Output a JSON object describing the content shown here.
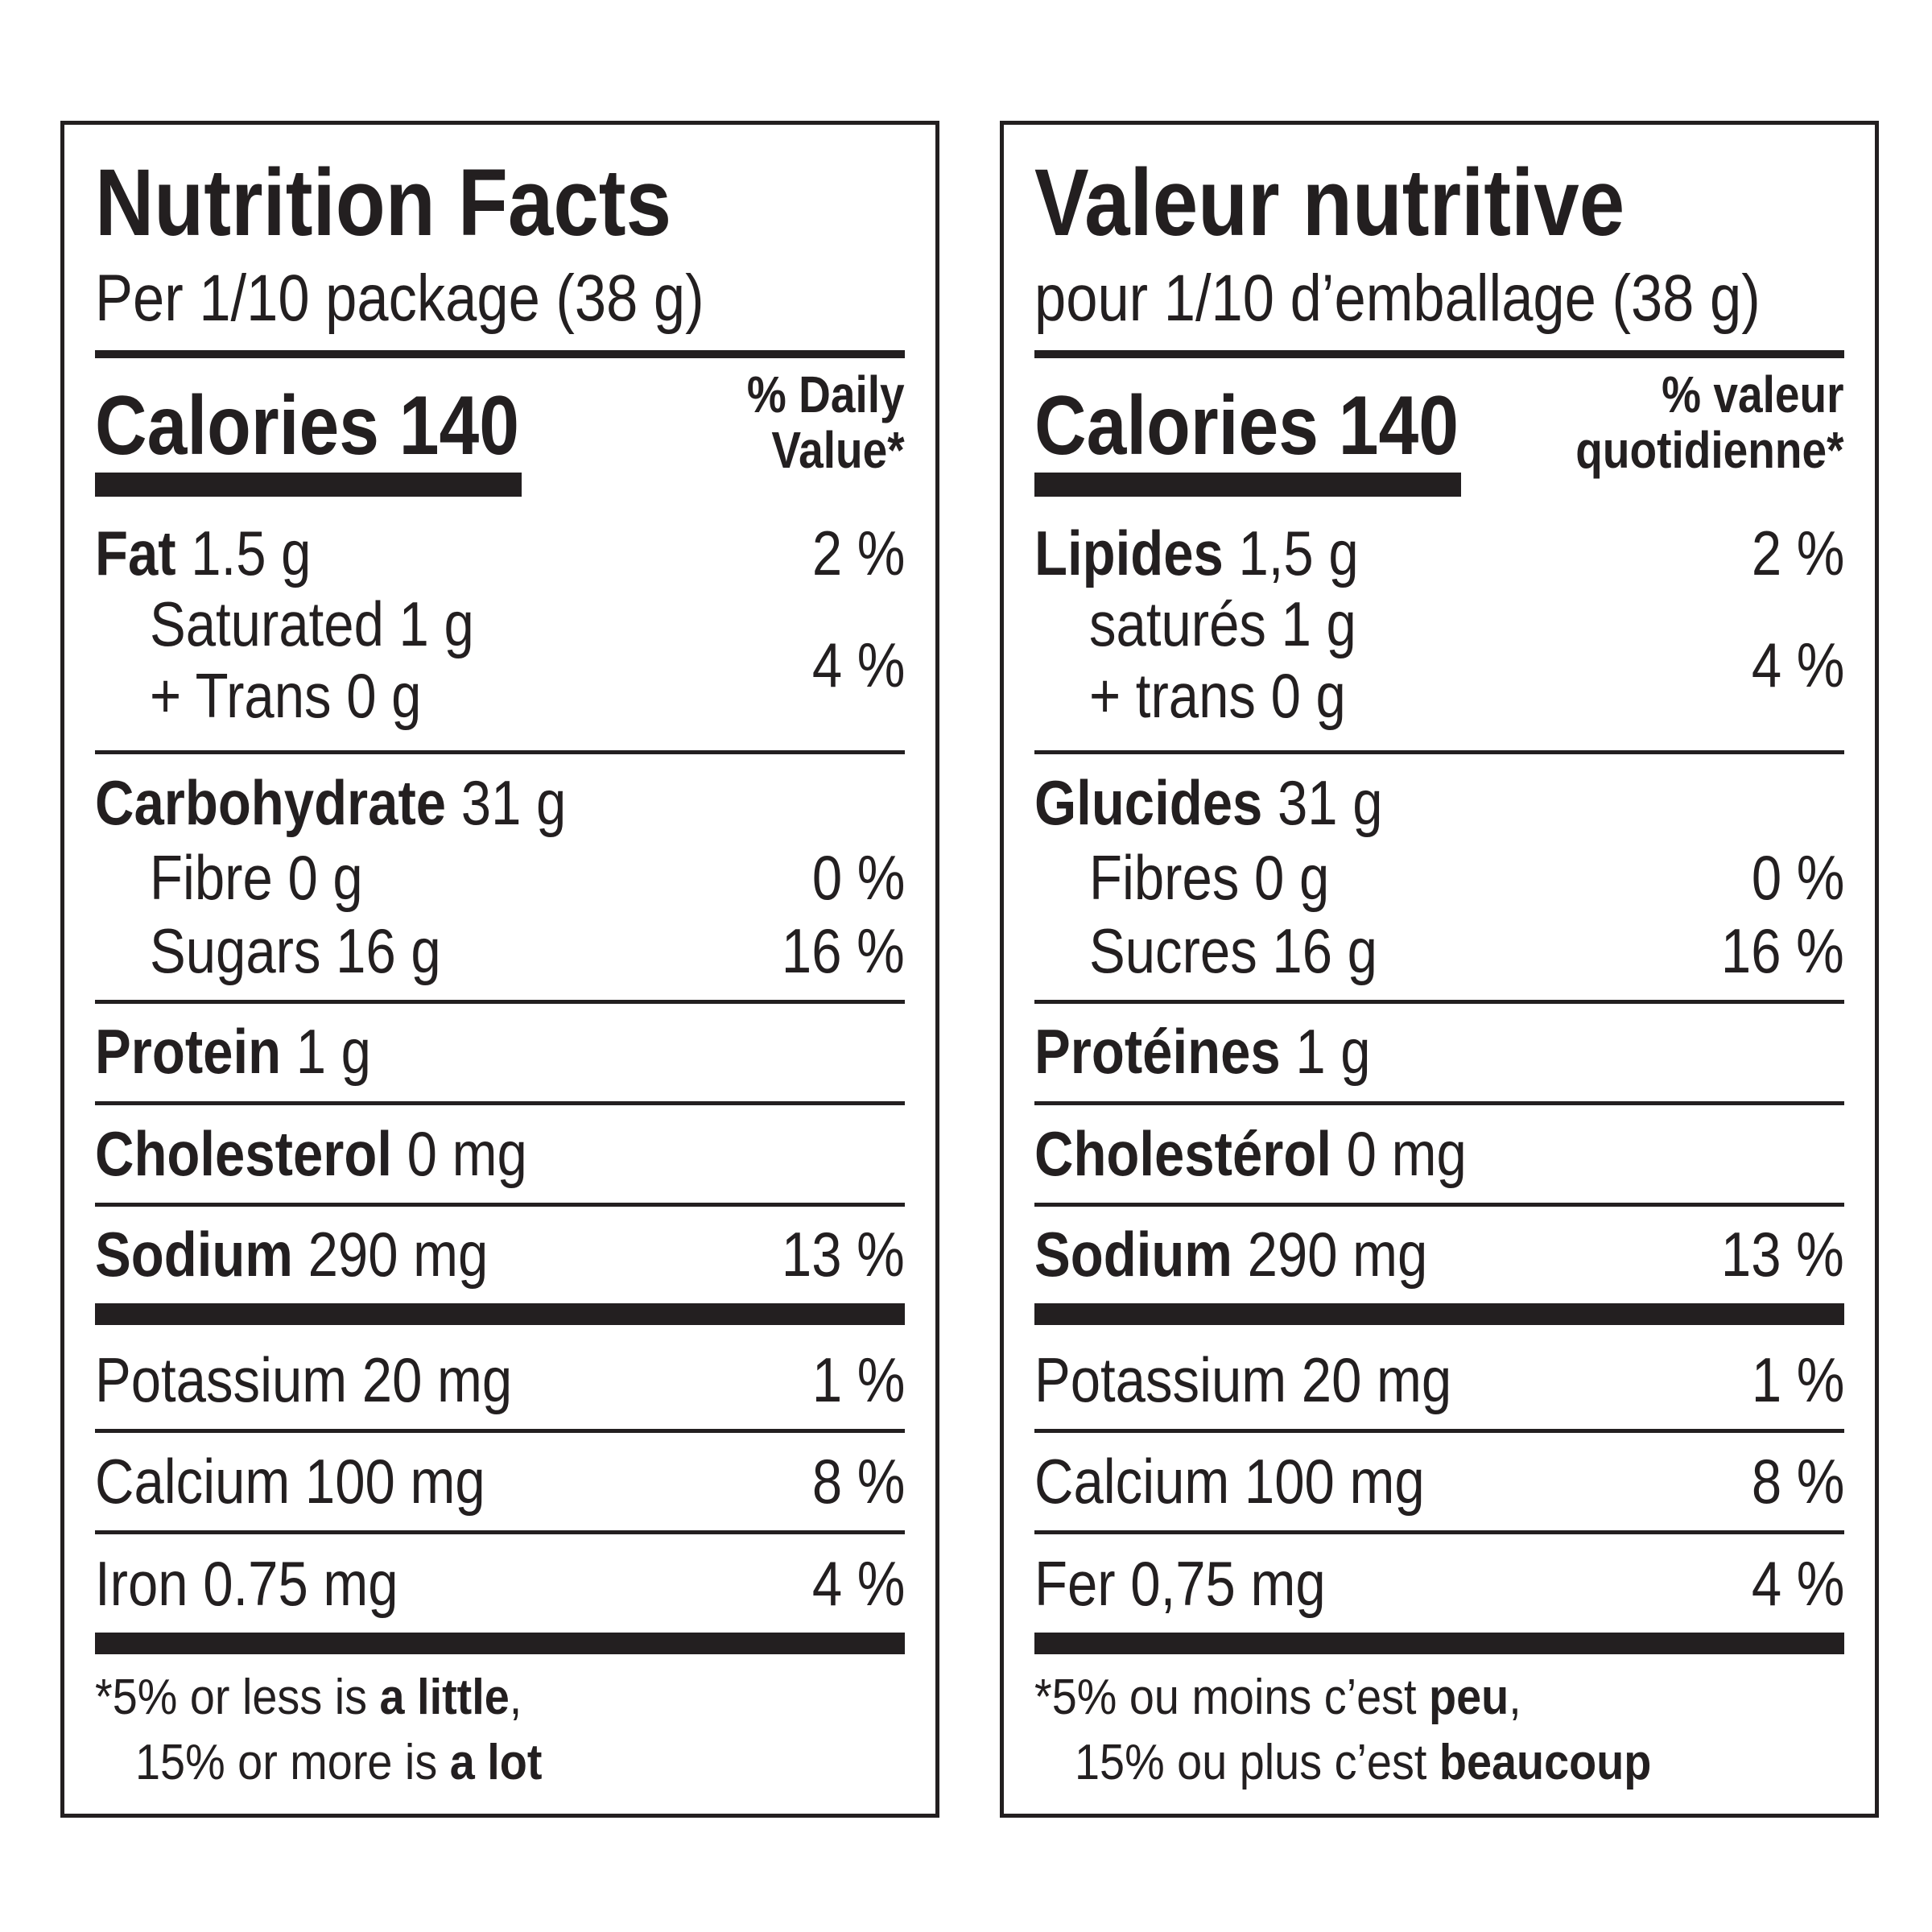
{
  "en": {
    "title": "Nutrition Facts",
    "serving": "Per 1/10 package (38 g)",
    "calories_label": "Calories 140",
    "dv_header_1": "% Daily",
    "dv_header_2": "Value*",
    "fat_label": "Fat",
    "fat_value": "1.5 g",
    "fat_dv": "2 %",
    "saturated": "Saturated 1 g",
    "trans": "+ Trans 0 g",
    "sat_trans_dv": "4 %",
    "carb_label": "Carbohydrate",
    "carb_value": "31 g",
    "fibre": "Fibre 0 g",
    "fibre_dv": "0 %",
    "sugars": "Sugars 16 g",
    "sugars_dv": "16 %",
    "protein_label": "Protein",
    "protein_value": "1 g",
    "chol_label": "Cholesterol",
    "chol_value": "0 mg",
    "sodium_label": "Sodium",
    "sodium_value": "290 mg",
    "sodium_dv": "13 %",
    "potassium": "Potassium 20 mg",
    "potassium_dv": "1 %",
    "calcium": "Calcium 100 mg",
    "calcium_dv": "8 %",
    "iron": "Iron 0.75 mg",
    "iron_dv": "4 %",
    "foot_star": "*",
    "foot1_a": "5% or less is ",
    "foot1_b": "a little",
    "foot1_c": ",",
    "foot2_a": "15% or more is ",
    "foot2_b": "a lot"
  },
  "fr": {
    "title": "Valeur nutritive",
    "serving": "pour 1/10 d’emballage (38 g)",
    "calories_label": "Calories 140",
    "dv_header_1": "% valeur",
    "dv_header_2": "quotidienne*",
    "fat_label": "Lipides",
    "fat_value": "1,5 g",
    "fat_dv": "2 %",
    "saturated": "saturés 1 g",
    "trans": "+ trans 0 g",
    "sat_trans_dv": "4 %",
    "carb_label": "Glucides",
    "carb_value": "31 g",
    "fibre": "Fibres 0 g",
    "fibre_dv": "0 %",
    "sugars": "Sucres 16 g",
    "sugars_dv": "16 %",
    "protein_label": "Protéines",
    "protein_value": "1 g",
    "chol_label": "Cholestérol",
    "chol_value": "0 mg",
    "sodium_label": "Sodium",
    "sodium_value": "290 mg",
    "sodium_dv": "13 %",
    "potassium": "Potassium 20 mg",
    "potassium_dv": "1 %",
    "calcium": "Calcium 100 mg",
    "calcium_dv": "8 %",
    "iron": "Fer 0,75 mg",
    "iron_dv": "4 %",
    "foot_star": "*",
    "foot1_a": "5% ou moins c’est ",
    "foot1_b": "peu",
    "foot1_c": ",",
    "foot2_a": "15% ou plus c’est ",
    "foot2_b": "beaucoup"
  }
}
